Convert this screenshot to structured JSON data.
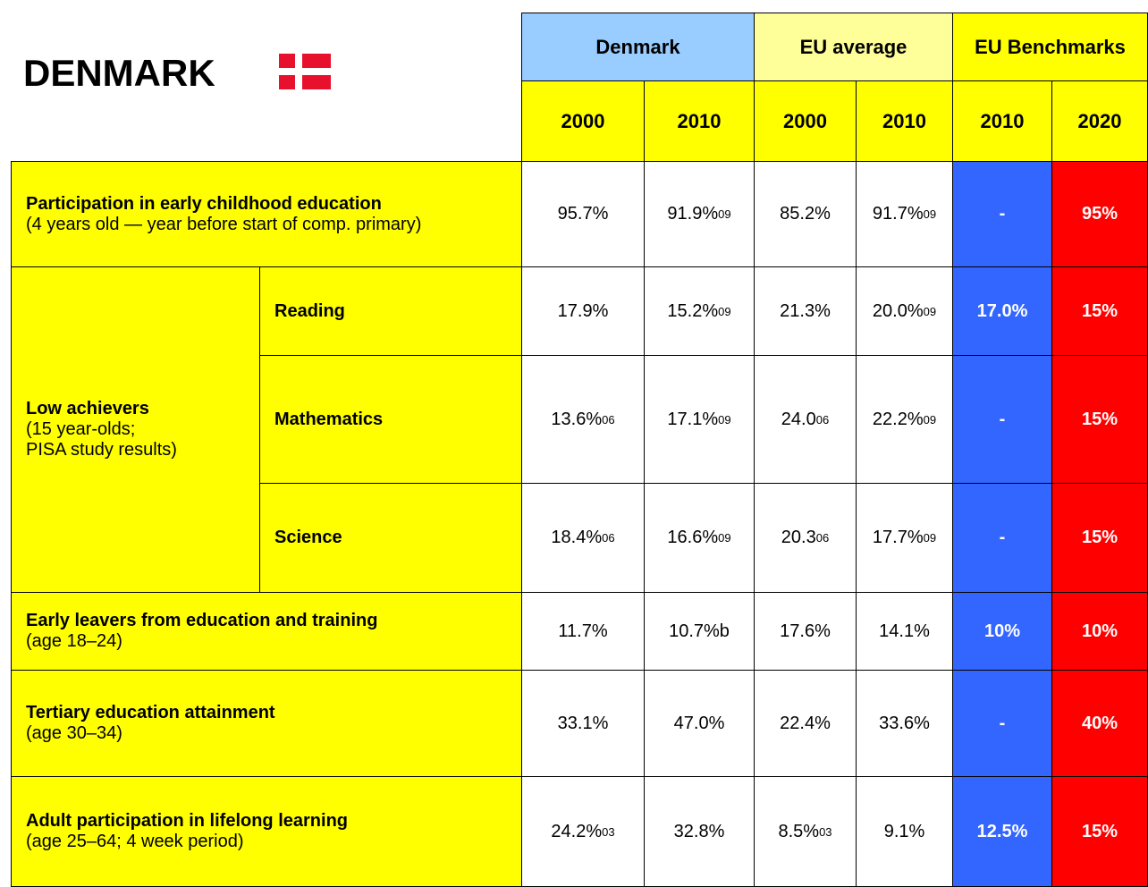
{
  "title": "DENMARK",
  "header": {
    "groups": [
      "Denmark",
      "EU average",
      "EU Benchmarks"
    ],
    "years": [
      "2000",
      "2010",
      "2000",
      "2010",
      "2010",
      "2020"
    ]
  },
  "rows": [
    {
      "label": "Participation in early childhood education",
      "note": "(4 years old — year before start of comp. primary)",
      "cells": [
        {
          "text": "95.7%"
        },
        {
          "text": "91.9%",
          "sup": "09"
        },
        {
          "text": "85.2%"
        },
        {
          "text": "91.7%",
          "sup": "09"
        },
        {
          "text": "-"
        },
        {
          "text": "95%"
        }
      ]
    },
    {
      "label": "Low achievers",
      "note": "(15 year-olds;\nPISA study results)",
      "subrows": [
        {
          "label": "Reading",
          "cells": [
            {
              "text": "17.9%"
            },
            {
              "text": "15.2%",
              "sup": "09"
            },
            {
              "text": "21.3%"
            },
            {
              "text": "20.0%",
              "sup": "09"
            },
            {
              "text": "17.0%"
            },
            {
              "text": "15%"
            }
          ]
        },
        {
          "label": "Mathematics",
          "cells": [
            {
              "text": "13.6%",
              "sup": "06"
            },
            {
              "text": "17.1%",
              "sup": "09"
            },
            {
              "text": "24.0",
              "sup": "06"
            },
            {
              "text": "22.2%",
              "sup": "09"
            },
            {
              "text": "-"
            },
            {
              "text": "15%"
            }
          ]
        },
        {
          "label": "Science",
          "cells": [
            {
              "text": "18.4%",
              "sup": "06"
            },
            {
              "text": "16.6%",
              "sup": "09"
            },
            {
              "text": "20.3",
              "sup": "06"
            },
            {
              "text": "17.7%",
              "sup": "09"
            },
            {
              "text": "-"
            },
            {
              "text": "15%"
            }
          ]
        }
      ]
    },
    {
      "label": "Early leavers from education and training",
      "note": "(age 18–24)",
      "cells": [
        {
          "text": "11.7%"
        },
        {
          "text": "10.7%b"
        },
        {
          "text": "17.6%"
        },
        {
          "text": "14.1%"
        },
        {
          "text": "10%"
        },
        {
          "text": "10%"
        }
      ]
    },
    {
      "label": "Tertiary education attainment",
      "note": "(age 30–34)",
      "cells": [
        {
          "text": "33.1%"
        },
        {
          "text": "47.0%"
        },
        {
          "text": "22.4%"
        },
        {
          "text": "33.6%"
        },
        {
          "text": "-"
        },
        {
          "text": "40%"
        }
      ]
    },
    {
      "label": "Adult participation in lifelong learning",
      "note": "(age 25–64; 4 week period)",
      "cells": [
        {
          "text": "24.2%",
          "sup": "03"
        },
        {
          "text": "32.8%"
        },
        {
          "text": "8.5%",
          "sup": "03"
        },
        {
          "text": "9.1%"
        },
        {
          "text": "12.5%"
        },
        {
          "text": "15%"
        }
      ]
    }
  ]
}
